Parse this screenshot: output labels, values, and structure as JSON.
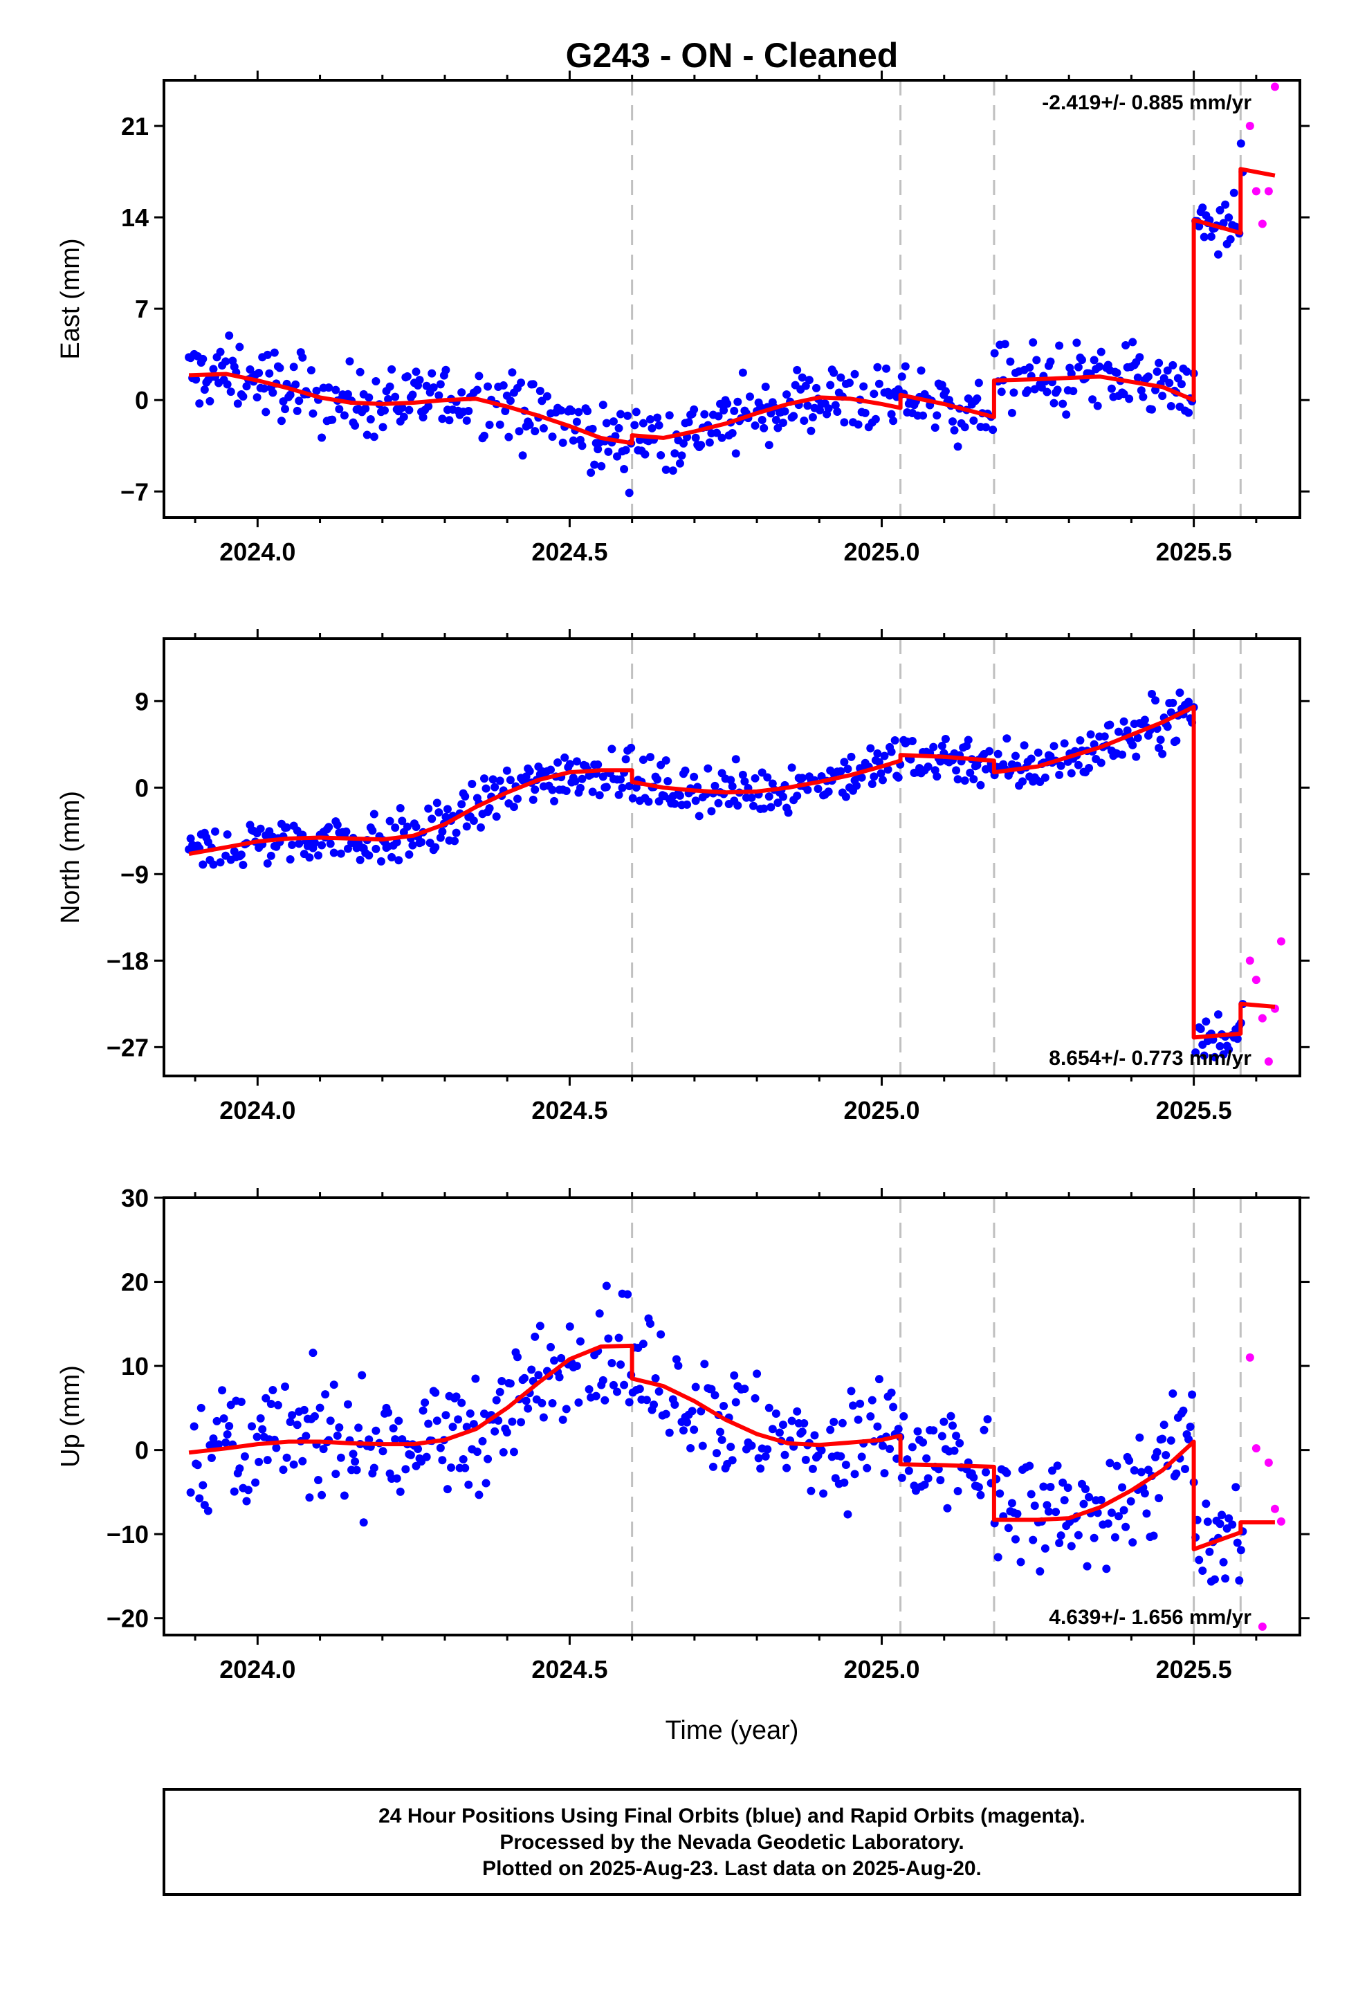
{
  "title": "G243  - ON - Cleaned",
  "xlabel": "Time (year)",
  "footer": {
    "line1": "24 Hour Positions Using Final Orbits (blue) and Rapid Orbits (magenta).",
    "line2": "Processed by the Nevada Geodetic Laboratory.",
    "line3": "Plotted on 2025-Aug-23. Last data on 2025-Aug-20."
  },
  "colors": {
    "final": "#0000ff",
    "rapid": "#ff00ff",
    "model": "#ff0000",
    "steps": "#c0c0c0"
  },
  "chart_data": [
    {
      "type": "scatter",
      "ylabel": "East (mm)",
      "xlim": [
        2023.85,
        2025.67
      ],
      "ylim": [
        -9,
        24.5
      ],
      "yticks": [
        -7,
        0,
        7,
        14,
        21
      ],
      "xticks": [
        "2024.0",
        "2024.5",
        "2025.0",
        "2025.5"
      ],
      "rate_label": "-2.419+/- 0.885 mm/yr",
      "rate_position": "top-right",
      "step_lines": [
        2024.6,
        2025.03,
        2025.18,
        2025.5,
        2025.575
      ],
      "model": {
        "x": [
          2023.89,
          2023.95,
          2024.0,
          2024.05,
          2024.1,
          2024.15,
          2024.2,
          2024.25,
          2024.3,
          2024.35,
          2024.4,
          2024.45,
          2024.5,
          2024.55,
          2024.6,
          2024.6,
          2024.65,
          2024.7,
          2024.75,
          2024.8,
          2024.85,
          2024.9,
          2024.95,
          2025.0,
          2025.03,
          2025.03,
          2025.1,
          2025.18,
          2025.18,
          2025.25,
          2025.35,
          2025.45,
          2025.5,
          2025.5,
          2025.575,
          2025.575,
          2025.63
        ],
        "y": [
          1.9,
          2.0,
          1.5,
          0.9,
          0.2,
          -0.2,
          -0.3,
          -0.2,
          0.0,
          0.1,
          -0.5,
          -1.2,
          -2.0,
          -2.9,
          -3.3,
          -2.7,
          -2.9,
          -2.4,
          -1.8,
          -1.0,
          -0.3,
          0.2,
          0.1,
          -0.3,
          -0.6,
          0.4,
          -0.3,
          -1.3,
          1.5,
          1.6,
          1.8,
          1.0,
          0.0,
          13.8,
          12.8,
          17.7,
          17.2
        ]
      },
      "rapid": {
        "x": [
          2025.59,
          2025.6,
          2025.61,
          2025.62,
          2025.63
        ],
        "y": [
          21.0,
          16.0,
          13.5,
          16.0,
          24.0
        ]
      }
    },
    {
      "type": "scatter",
      "ylabel": "North (mm)",
      "xlim": [
        2023.85,
        2025.67
      ],
      "ylim": [
        -30,
        15.5
      ],
      "yticks": [
        -27,
        -18,
        -9,
        0,
        9
      ],
      "xticks": [
        "2024.0",
        "2024.5",
        "2025.0",
        "2025.5"
      ],
      "rate_label": "8.654+/- 0.773 mm/yr",
      "rate_position": "bottom-right",
      "step_lines": [
        2024.6,
        2025.03,
        2025.18,
        2025.5,
        2025.575
      ],
      "model": {
        "x": [
          2023.89,
          2023.95,
          2024.0,
          2024.05,
          2024.1,
          2024.15,
          2024.2,
          2024.25,
          2024.3,
          2024.35,
          2024.4,
          2024.45,
          2024.5,
          2024.55,
          2024.6,
          2024.6,
          2024.65,
          2024.7,
          2024.75,
          2024.8,
          2024.85,
          2024.9,
          2024.95,
          2025.0,
          2025.03,
          2025.03,
          2025.1,
          2025.18,
          2025.18,
          2025.25,
          2025.35,
          2025.45,
          2025.5,
          2025.5,
          2025.575,
          2025.575,
          2025.63
        ],
        "y": [
          -6.9,
          -6.2,
          -5.6,
          -5.3,
          -5.2,
          -5.3,
          -5.4,
          -5.0,
          -3.8,
          -2.0,
          -0.5,
          0.8,
          1.6,
          1.8,
          1.8,
          0.6,
          0.0,
          -0.3,
          -0.5,
          -0.4,
          0.0,
          0.6,
          1.3,
          2.2,
          2.8,
          3.4,
          3.2,
          2.8,
          1.6,
          2.2,
          4.2,
          6.8,
          8.4,
          -26.0,
          -25.6,
          -22.5,
          -22.8
        ]
      },
      "rapid": {
        "x": [
          2025.59,
          2025.6,
          2025.61,
          2025.62,
          2025.63,
          2025.64
        ],
        "y": [
          -18.0,
          -20.0,
          -24.0,
          -28.5,
          -23.0,
          -16.0
        ]
      }
    },
    {
      "type": "scatter",
      "ylabel": "Up (mm)",
      "xlim": [
        2023.85,
        2025.67
      ],
      "ylim": [
        -22,
        30
      ],
      "yticks": [
        -20,
        -10,
        0,
        10,
        20,
        30
      ],
      "xticks": [
        "2024.0",
        "2024.5",
        "2025.0",
        "2025.5"
      ],
      "rate_label": "4.639+/- 1.656 mm/yr",
      "rate_position": "bottom-right",
      "step_lines": [
        2024.6,
        2025.03,
        2025.18,
        2025.5,
        2025.575
      ],
      "model": {
        "x": [
          2023.89,
          2023.95,
          2024.0,
          2024.05,
          2024.1,
          2024.15,
          2024.2,
          2024.25,
          2024.3,
          2024.35,
          2024.4,
          2024.45,
          2024.5,
          2024.55,
          2024.6,
          2024.6,
          2024.65,
          2024.7,
          2024.75,
          2024.8,
          2024.85,
          2024.9,
          2024.95,
          2025.0,
          2025.03,
          2025.03,
          2025.1,
          2025.18,
          2025.18,
          2025.25,
          2025.3,
          2025.35,
          2025.4,
          2025.45,
          2025.5,
          2025.5,
          2025.575,
          2025.575,
          2025.63
        ],
        "y": [
          -0.3,
          0.2,
          0.7,
          1.0,
          1.0,
          0.8,
          0.7,
          0.7,
          1.2,
          2.5,
          5.0,
          8.0,
          10.8,
          12.3,
          12.4,
          8.5,
          7.6,
          5.8,
          3.6,
          1.9,
          0.8,
          0.6,
          0.9,
          1.2,
          1.7,
          -1.7,
          -1.8,
          -2.0,
          -8.3,
          -8.3,
          -8.1,
          -6.8,
          -4.8,
          -2.4,
          1.0,
          -11.8,
          -9.8,
          -8.6,
          -8.6
        ]
      },
      "rapid": {
        "x": [
          2025.59,
          2025.6,
          2025.61,
          2025.62,
          2025.63,
          2025.64
        ],
        "y": [
          11.0,
          0.2,
          -21.0,
          -1.5,
          -7.0,
          -8.5
        ]
      }
    }
  ]
}
